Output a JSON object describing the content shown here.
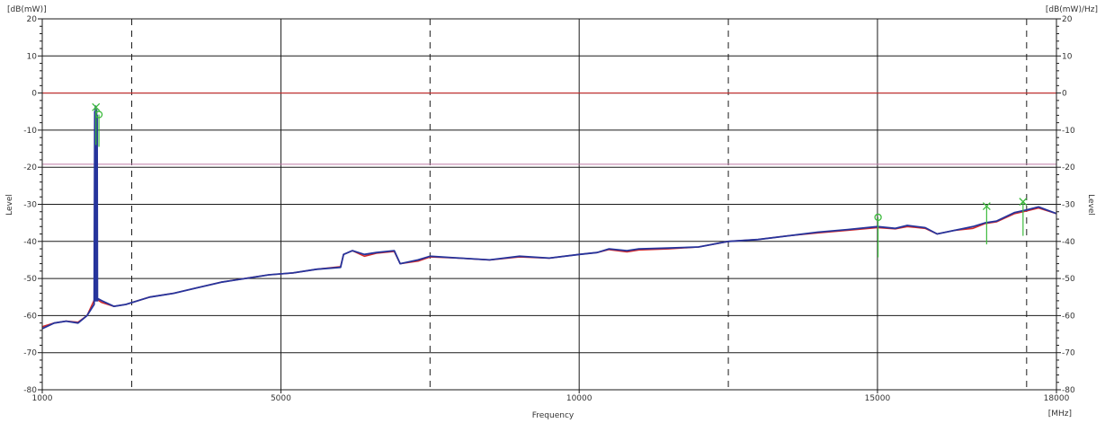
{
  "chart_data": {
    "type": "line",
    "xlabel": "Frequency",
    "ylabel_left": "Level",
    "ylabel_right": "Level",
    "y_unit_left": "[dB(mW)]",
    "y_unit_right": "[dB(mW)/Hz]",
    "x_unit": "[MHz]",
    "xlim": [
      1000,
      18000
    ],
    "ylim": [
      -80,
      20
    ],
    "x_ticks": [
      1000,
      5000,
      10000,
      15000,
      18000
    ],
    "y_ticks": [
      20,
      10,
      0,
      -10,
      -20,
      -30,
      -40,
      -50,
      -60,
      -70,
      -80
    ],
    "y_tick_labels": [
      "20",
      "10",
      "0",
      "-10",
      "-20",
      "-30",
      "-40",
      "-50",
      "-60",
      "-70",
      "-80"
    ],
    "grid": true,
    "dashed_gridlines_x": [
      2500,
      7500,
      12500,
      17500
    ],
    "reference_lines": [
      {
        "name": "limit-0",
        "y": 0,
        "color": "#d42a2a"
      },
      {
        "name": "limit-19",
        "y": -19.2,
        "color": "#c07aa8"
      }
    ],
    "series": [
      {
        "color": "#d42a2a",
        "x": [
          1000,
          1200,
          1400,
          1600,
          1750,
          1880,
          1900,
          2000,
          2200,
          2400,
          2800,
          3200,
          3600,
          4000,
          4400,
          4800,
          5200,
          5600,
          6000,
          6050,
          6200,
          6400,
          6600,
          6900,
          7000,
          7300,
          7500,
          8000,
          8500,
          9000,
          9500,
          10000,
          10300,
          10500,
          10800,
          11000,
          11500,
          12000,
          12500,
          13000,
          13500,
          14000,
          14500,
          15000,
          15300,
          15500,
          15800,
          16000,
          16300,
          16600,
          16800,
          17000,
          17300,
          17500,
          17700,
          18000
        ],
        "values": [
          -63,
          -62,
          -61.5,
          -61.8,
          -60,
          -55.5,
          -55.5,
          -56.5,
          -57.5,
          -57,
          -55,
          -54,
          -52.5,
          -51,
          -50,
          -49,
          -48.5,
          -47.5,
          -46.8,
          -43.5,
          -42.5,
          -44,
          -43.2,
          -42.7,
          -46,
          -45.3,
          -44.2,
          -44.5,
          -45,
          -44.2,
          -44.5,
          -43.5,
          -43,
          -42.2,
          -42.8,
          -42.3,
          -42,
          -41.5,
          -40,
          -39.5,
          -38.5,
          -37.7,
          -37,
          -36.3,
          -36.6,
          -36,
          -36.5,
          -38,
          -37,
          -36.5,
          -35.2,
          -34.7,
          -32.5,
          -31.8,
          -31,
          -32.5
        ]
      },
      {
        "color": "#26349c",
        "x": [
          1000,
          1200,
          1400,
          1600,
          1750,
          1870,
          1880,
          1885,
          1890,
          1895,
          1900,
          1905,
          1910,
          1915,
          1920,
          1925,
          1940,
          2000,
          2200,
          2400,
          2800,
          3200,
          3600,
          4000,
          4400,
          4800,
          5200,
          5600,
          6000,
          6050,
          6200,
          6400,
          6600,
          6900,
          7000,
          7300,
          7500,
          8000,
          8500,
          9000,
          9500,
          10000,
          10300,
          10500,
          10800,
          11000,
          11500,
          12000,
          12500,
          13000,
          13500,
          14000,
          14500,
          15000,
          15300,
          15500,
          15800,
          16000,
          16300,
          16600,
          16800,
          17000,
          17300,
          17500,
          17700,
          18000
        ],
        "values": [
          -63.5,
          -62,
          -61.5,
          -62,
          -60,
          -57,
          -5,
          -56,
          -3.5,
          -56,
          -5.5,
          -56,
          -4.5,
          -56,
          -6,
          -56,
          -55.5,
          -56,
          -57.5,
          -57,
          -55,
          -54,
          -52.5,
          -51,
          -50,
          -49,
          -48.5,
          -47.5,
          -47,
          -43.5,
          -42.5,
          -43.5,
          -43,
          -42.5,
          -46,
          -45,
          -44,
          -44.5,
          -45,
          -44,
          -44.5,
          -43.5,
          -43,
          -42,
          -42.5,
          -42,
          -41.8,
          -41.5,
          -40,
          -39.5,
          -38.5,
          -37.5,
          -36.8,
          -36,
          -36.5,
          -35.7,
          -36.3,
          -38,
          -37,
          -36,
          -35,
          -34.5,
          -32.2,
          -31.5,
          -30.7,
          -32.5
        ]
      }
    ],
    "markers": [
      {
        "type": "peak",
        "symbol": "x",
        "x": 1900,
        "y": -3.8
      },
      {
        "type": "search",
        "symbol": "circle",
        "x": 1950,
        "y": -5.8
      },
      {
        "type": "search",
        "symbol": "circle",
        "x": 15010,
        "y": -33.5
      },
      {
        "type": "peak",
        "symbol": "x",
        "x": 16830,
        "y": -30.5
      },
      {
        "type": "peak",
        "symbol": "x",
        "x": 17440,
        "y": -29.3
      }
    ],
    "marker_stems": [
      {
        "x": 1900,
        "y_top": -3.8,
        "y_bottom": -14
      },
      {
        "x": 1950,
        "y_top": -5.8,
        "y_bottom": -14.5
      },
      {
        "x": 15010,
        "y_top": -33.5,
        "y_bottom": -44.3
      },
      {
        "x": 16830,
        "y_top": -30.5,
        "y_bottom": -40.8
      },
      {
        "x": 17440,
        "y_top": -29.3,
        "y_bottom": -38.5
      }
    ],
    "colors": {
      "grid_solid": "#1a1a1a",
      "grid_dashed": "#1a1a1a",
      "marker": "#3dbb3d"
    }
  }
}
